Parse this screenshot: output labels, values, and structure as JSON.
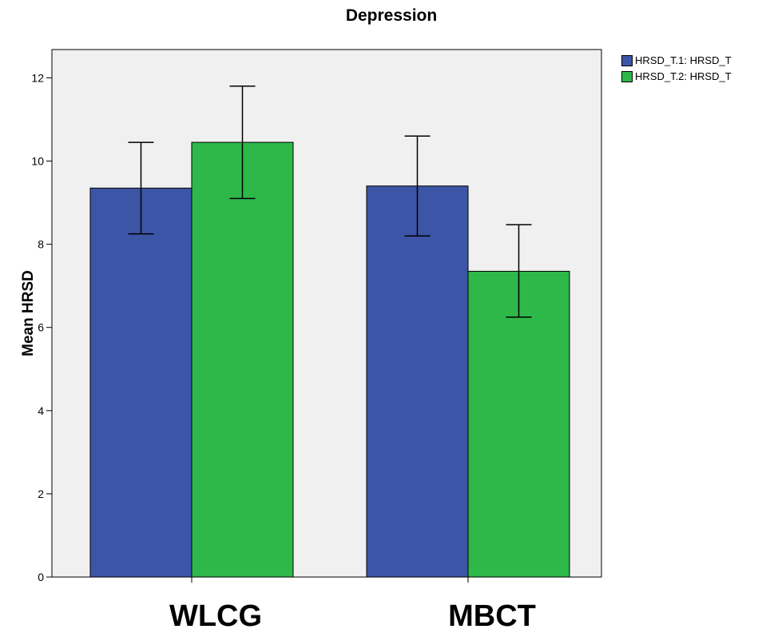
{
  "chart_data": {
    "type": "bar",
    "title": "Depression",
    "xlabel": "",
    "ylabel": "Mean HRSD",
    "categories": [
      "WLCG",
      "MBCT"
    ],
    "ylim": [
      0,
      12.5
    ],
    "yticks": [
      0,
      2,
      4,
      6,
      8,
      10,
      12
    ],
    "grid": false,
    "legend_position": "top-right, outside plot",
    "series": [
      {
        "name": "HRSD_T.1: HRSD_T",
        "color": "#3D55A6",
        "values": [
          9.35,
          9.4
        ],
        "error_low": [
          8.25,
          8.2
        ],
        "error_high": [
          10.45,
          10.6
        ]
      },
      {
        "name": "HRSD_T.2: HRSD_T",
        "color": "#2EB84A",
        "values": [
          10.45,
          7.35
        ],
        "error_low": [
          9.1,
          6.25
        ],
        "error_high": [
          11.8,
          8.47
        ]
      }
    ],
    "plot_background": "#F0F0F0"
  }
}
